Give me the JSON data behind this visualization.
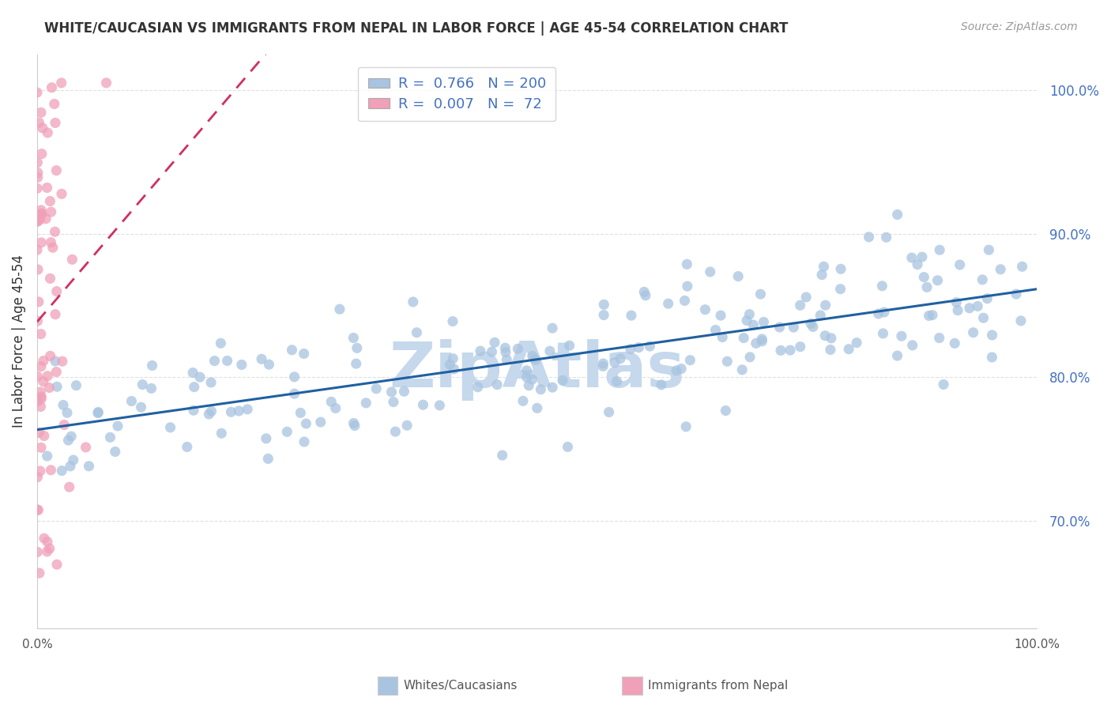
{
  "title": "WHITE/CAUCASIAN VS IMMIGRANTS FROM NEPAL IN LABOR FORCE | AGE 45-54 CORRELATION CHART",
  "source": "Source: ZipAtlas.com",
  "ylabel": "In Labor Force | Age 45-54",
  "xlim": [
    0.0,
    1.0
  ],
  "ylim": [
    0.625,
    1.025
  ],
  "yticks": [
    0.7,
    0.8,
    0.9,
    1.0
  ],
  "ytick_labels": [
    "70.0%",
    "80.0%",
    "90.0%",
    "100.0%"
  ],
  "blue_R": 0.766,
  "blue_N": 200,
  "pink_R": 0.007,
  "pink_N": 72,
  "blue_color": "#a8c4e0",
  "blue_line_color": "#2060a0",
  "pink_color": "#f0a0b8",
  "pink_line_color": "#d03060",
  "watermark": "ZipAtlas",
  "watermark_color": "#c5d8ec",
  "legend_label_blue": "Whites/Caucasians",
  "legend_label_pink": "Immigrants from Nepal",
  "background_color": "#ffffff",
  "grid_color": "#e0e0e0"
}
